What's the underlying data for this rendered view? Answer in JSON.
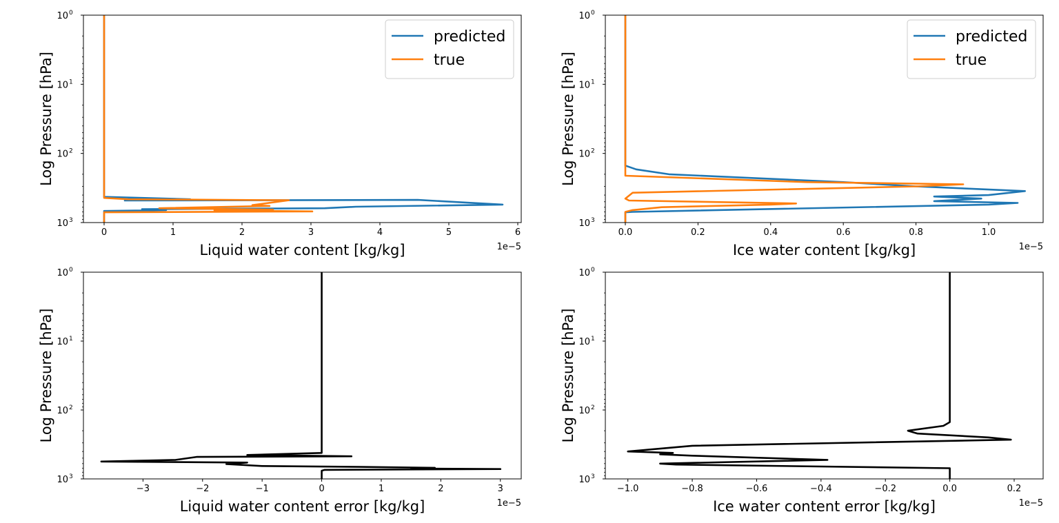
{
  "chart_data": [
    {
      "type": "line",
      "xlabel": "Liquid water content [kg/kg]",
      "ylabel": "Log Pressure [hPa]",
      "x_offset_label": "1e−5",
      "xscale_factor": 1e-05,
      "xlim": [
        -0.3,
        6.05
      ],
      "xticks": [
        0,
        1,
        2,
        3,
        4,
        5,
        6
      ],
      "xtick_labels": [
        "0",
        "1",
        "2",
        "3",
        "4",
        "5",
        "6"
      ],
      "yscale": "log",
      "yinvert": true,
      "ylim": [
        1,
        1000
      ],
      "yticks": [
        1,
        10,
        100,
        1000
      ],
      "ytick_labels": [
        [
          "10",
          "0"
        ],
        [
          "10",
          "1"
        ],
        [
          "10",
          "2"
        ],
        [
          "10",
          "3"
        ]
      ],
      "grid": false,
      "legend": "top-right",
      "series": [
        {
          "name": "predicted",
          "color": "#1f77b4",
          "x": [
            0,
            0,
            0,
            0,
            1.25,
            0.3,
            4.55,
            5.78,
            3.65,
            3.2,
            0.55,
            0.9,
            0,
            0
          ],
          "y": [
            1,
            100,
            400,
            425,
            460,
            480,
            470,
            550,
            590,
            620,
            640,
            660,
            680,
            1000
          ]
        },
        {
          "name": "true",
          "color": "#ff7f0e",
          "x": [
            0,
            0,
            0,
            0,
            0.35,
            2.68,
            2.15,
            2.4,
            0.8,
            2.45,
            1.6,
            3.02,
            0,
            0
          ],
          "y": [
            1,
            100,
            420,
            440,
            460,
            475,
            560,
            575,
            620,
            650,
            665,
            690,
            710,
            1000
          ]
        }
      ]
    },
    {
      "type": "line",
      "xlabel": "Ice water content [kg/kg]",
      "ylabel": "Log Pressure [hPa]",
      "x_offset_label": "1e−5",
      "xscale_factor": 1e-05,
      "xlim": [
        -0.055,
        1.15
      ],
      "xticks": [
        0,
        0.2,
        0.4,
        0.6,
        0.8,
        1.0
      ],
      "xtick_labels": [
        "0.0",
        "0.2",
        "0.4",
        "0.6",
        "0.8",
        "1.0"
      ],
      "yscale": "log",
      "yinvert": true,
      "ylim": [
        1,
        1000
      ],
      "yticks": [
        1,
        10,
        100,
        1000
      ],
      "ytick_labels": [
        [
          "10",
          "0"
        ],
        [
          "10",
          "1"
        ],
        [
          "10",
          "2"
        ],
        [
          "10",
          "3"
        ]
      ],
      "grid": false,
      "legend": "top-right",
      "series": [
        {
          "name": "predicted",
          "color": "#1f77b4",
          "x": [
            0,
            0,
            0.03,
            0.12,
            0.6,
            0.8,
            1.1,
            1.0,
            0.85,
            0.98,
            0.85,
            1.08,
            1.0,
            0.02,
            0,
            0
          ],
          "y": [
            1,
            150,
            170,
            200,
            260,
            300,
            350,
            400,
            420,
            450,
            490,
            520,
            550,
            700,
            710,
            1000
          ]
        },
        {
          "name": "true",
          "color": "#ff7f0e",
          "x": [
            0,
            0,
            0,
            0.5,
            0.93,
            0.8,
            0.02,
            0,
            0.01,
            0.47,
            0.4,
            0.1,
            0.02,
            0,
            0
          ],
          "y": [
            1,
            150,
            210,
            260,
            280,
            300,
            370,
            450,
            480,
            530,
            550,
            600,
            660,
            700,
            1000
          ]
        }
      ]
    },
    {
      "type": "line",
      "xlabel": "Liquid water content error [kg/kg]",
      "ylabel": "Log Pressure [hPa]",
      "x_offset_label": "1e−5",
      "xscale_factor": 1e-05,
      "xlim": [
        -4.0,
        3.35
      ],
      "xticks": [
        -3,
        -2,
        -1,
        0,
        1,
        2,
        3
      ],
      "xtick_labels": [
        "−3",
        "−2",
        "−1",
        "0",
        "1",
        "2",
        "3"
      ],
      "yscale": "log",
      "yinvert": true,
      "ylim": [
        1,
        1000
      ],
      "yticks": [
        1,
        10,
        100,
        1000
      ],
      "ytick_labels": [
        [
          "10",
          "0"
        ],
        [
          "10",
          "1"
        ],
        [
          "10",
          "2"
        ],
        [
          "10",
          "3"
        ]
      ],
      "grid": false,
      "legend": "none",
      "series": [
        {
          "name": "",
          "color": "#000000",
          "x": [
            0,
            0,
            0,
            -1.25,
            0.5,
            -2.1,
            -2.45,
            -3.7,
            -1.25,
            -1.6,
            -1.0,
            0.65,
            1.9,
            1.5,
            1.85,
            3.0,
            0.05,
            0,
            0
          ],
          "y": [
            1,
            300,
            420,
            450,
            470,
            480,
            530,
            560,
            580,
            610,
            650,
            670,
            690,
            700,
            710,
            720,
            740,
            760,
            1000
          ]
        }
      ]
    },
    {
      "type": "line",
      "xlabel": "Ice water content error [kg/kg]",
      "ylabel": "Log Pressure [hPa]",
      "x_offset_label": "1e−5",
      "xscale_factor": 1e-05,
      "xlim": [
        -1.07,
        0.29
      ],
      "xticks": [
        -1.0,
        -0.8,
        -0.6,
        -0.4,
        -0.2,
        0.0,
        0.2
      ],
      "xtick_labels": [
        "−1.0",
        "−0.8",
        "−0.6",
        "−0.4",
        "−0.2",
        "0.0",
        "0.2"
      ],
      "yscale": "log",
      "yinvert": true,
      "ylim": [
        1,
        1000
      ],
      "yticks": [
        1,
        10,
        100,
        1000
      ],
      "ytick_labels": [
        [
          "10",
          "0"
        ],
        [
          "10",
          "1"
        ],
        [
          "10",
          "2"
        ],
        [
          "10",
          "3"
        ]
      ],
      "grid": false,
      "legend": "none",
      "series": [
        {
          "name": "",
          "color": "#000000",
          "x": [
            0,
            0,
            0,
            -0.02,
            -0.13,
            -0.1,
            0.12,
            0.19,
            -0.8,
            -1.0,
            -0.86,
            -0.9,
            -0.8,
            -0.38,
            -0.9,
            -0.85,
            0,
            0,
            0
          ],
          "y": [
            1,
            100,
            150,
            170,
            200,
            220,
            250,
            270,
            330,
            400,
            420,
            440,
            460,
            530,
            600,
            620,
            700,
            750,
            1000
          ]
        }
      ]
    }
  ]
}
